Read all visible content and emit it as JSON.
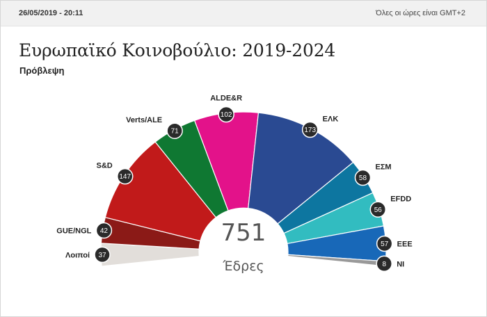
{
  "header": {
    "timestamp": "26/05/2019 - 20:11",
    "timezone_note": "Όλες οι ώρες είναι GMT+2"
  },
  "title": "Ευρωπαϊκό Κοινοβούλιο: 2019-2024",
  "subtitle": "Πρόβλεψη",
  "chart_data": {
    "type": "pie",
    "total": "751",
    "total_label": "Έδρες",
    "series": [
      {
        "name": "Λοιποί",
        "value": 37,
        "color": "#e2deda"
      },
      {
        "name": "GUE/NGL",
        "value": 42,
        "color": "#8b1a17"
      },
      {
        "name": "S&D",
        "value": 147,
        "color": "#c11a1a"
      },
      {
        "name": "Verts/ALE",
        "value": 71,
        "color": "#0f7832"
      },
      {
        "name": "ALDE&R",
        "value": 102,
        "color": "#e3128a"
      },
      {
        "name": "ΕΛΚ",
        "value": 173,
        "color": "#2a4a92"
      },
      {
        "name": "ΕΣΜ",
        "value": 58,
        "color": "#0d76a0"
      },
      {
        "name": "EFDD",
        "value": 56,
        "color": "#32bcc0"
      },
      {
        "name": "ΕΕΕ",
        "value": 57,
        "color": "#1868b8"
      },
      {
        "name": "NI",
        "value": 8,
        "color": "#999999"
      }
    ]
  }
}
